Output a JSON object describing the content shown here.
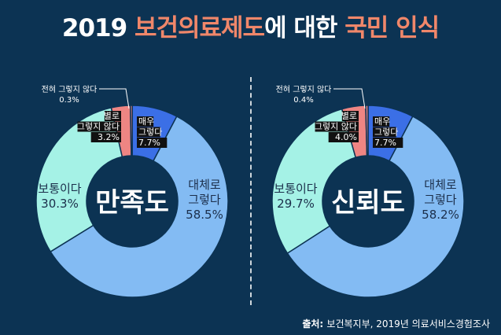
{
  "title": {
    "part1": "2019 ",
    "part2": "보건의료제도",
    "part3": "에 대한 ",
    "part4": "국민 인식"
  },
  "colors": {
    "background": "#0c3353",
    "very_yes": "#3b6fe6",
    "mostly_yes": "#83bbf3",
    "neutral": "#a5f2e6",
    "not_really": "#ee8583",
    "not_at_all": "#ee8583",
    "title_highlight": "#f0876a"
  },
  "chart_data": [
    {
      "type": "pie",
      "center_label": "만족도",
      "slices": [
        {
          "label": "매우\n그렇다",
          "value": 7.7,
          "value_text": "7.7%",
          "color": "#3b6fe6"
        },
        {
          "label": "대체로\n그렇다",
          "value": 58.5,
          "value_text": "58.5%",
          "color": "#83bbf3"
        },
        {
          "label": "보통이다",
          "value": 30.3,
          "value_text": "30.3%",
          "color": "#a5f2e6"
        },
        {
          "label": "별로\n그렇지 않다",
          "value": 3.2,
          "value_text": "3.2%",
          "color": "#ee8583"
        },
        {
          "label": "전혀 그렇지 않다",
          "value": 0.3,
          "value_text": "0.3%",
          "color": "#ee8583"
        }
      ]
    },
    {
      "type": "pie",
      "center_label": "신뢰도",
      "slices": [
        {
          "label": "매우\n그렇다",
          "value": 7.7,
          "value_text": "7.7%",
          "color": "#3b6fe6"
        },
        {
          "label": "대체로\n그렇다",
          "value": 58.2,
          "value_text": "58.2%",
          "color": "#83bbf3"
        },
        {
          "label": "보통이다",
          "value": 29.7,
          "value_text": "29.7%",
          "color": "#a5f2e6"
        },
        {
          "label": "별로\n그렇지 않다",
          "value": 4.0,
          "value_text": "4.0%",
          "color": "#ee8583"
        },
        {
          "label": "전혀 그렇지 않다",
          "value": 0.4,
          "value_text": "0.4%",
          "color": "#ee8583"
        }
      ]
    }
  ],
  "source": {
    "prefix": "출처: ",
    "text": "보건복지부, 2019년 의료서비스경험조사"
  }
}
